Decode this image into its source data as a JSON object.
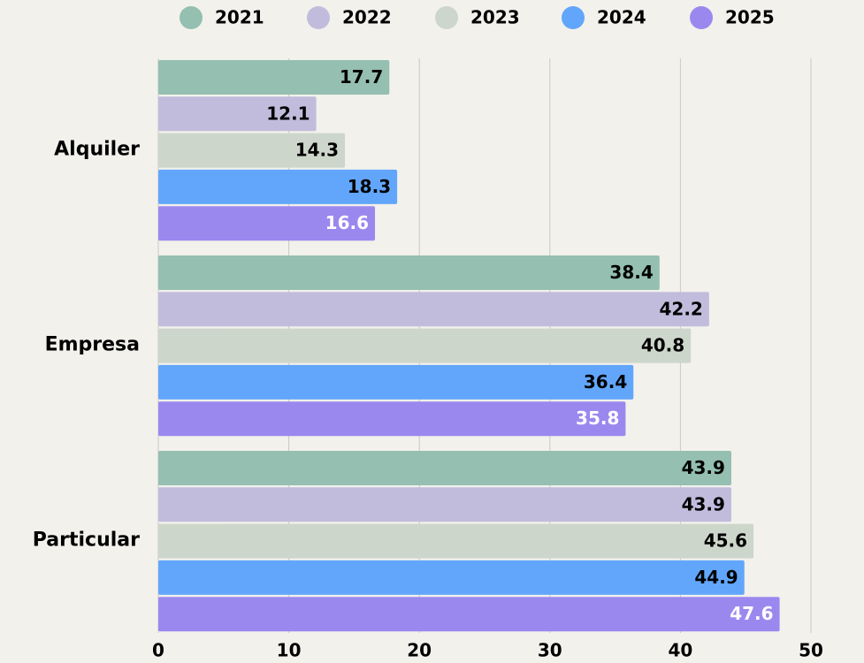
{
  "chart_data": {
    "type": "barh",
    "categories": [
      "Alquiler",
      "Empresa",
      "Particular"
    ],
    "series": [
      {
        "name": "2021",
        "color": "#94bfb1",
        "label_color": "#000000",
        "values": [
          17.7,
          38.4,
          43.9
        ]
      },
      {
        "name": "2022",
        "color": "#c2bcdc",
        "label_color": "#000000",
        "values": [
          12.1,
          42.2,
          43.9
        ]
      },
      {
        "name": "2023",
        "color": "#cdd6ca",
        "label_color": "#000000",
        "values": [
          14.3,
          40.8,
          45.6
        ]
      },
      {
        "name": "2024",
        "color": "#62a6fb",
        "label_color": "#000000",
        "values": [
          18.3,
          36.4,
          44.9
        ]
      },
      {
        "name": "2025",
        "color": "#9b88ef",
        "label_color": "#ffffff",
        "values": [
          16.6,
          35.8,
          47.6
        ]
      }
    ],
    "xlim": [
      0,
      50
    ],
    "xticks": [
      0,
      10,
      20,
      30,
      40,
      50
    ],
    "grid": true,
    "legend": "top"
  }
}
